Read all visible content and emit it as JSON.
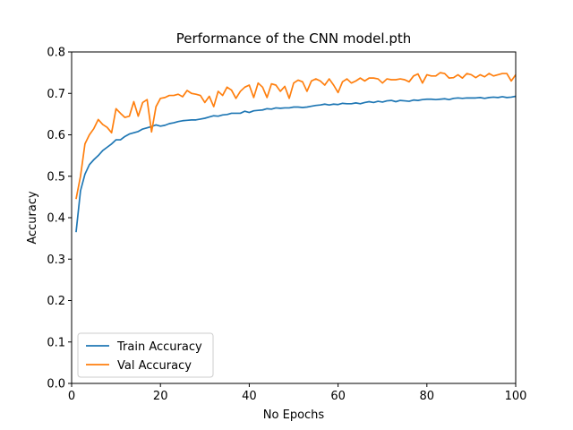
{
  "chart_data": {
    "type": "line",
    "title": "Performance of the CNN model.pth",
    "xlabel": "No Epochs",
    "ylabel": "Accuracy",
    "xlim": [
      0,
      100
    ],
    "ylim": [
      0.0,
      0.8
    ],
    "xticks": [
      "0",
      "20",
      "40",
      "60",
      "80",
      "100"
    ],
    "yticks": [
      "0.0",
      "0.1",
      "0.2",
      "0.3",
      "0.4",
      "0.5",
      "0.6",
      "0.7",
      "0.8"
    ],
    "grid": false,
    "legend": "lower-left",
    "series": [
      {
        "name": "Train Accuracy",
        "color": "#1f77b4",
        "values": [
          0.365,
          0.465,
          0.505,
          0.528,
          0.54,
          0.55,
          0.562,
          0.57,
          0.578,
          0.588,
          0.588,
          0.596,
          0.602,
          0.605,
          0.608,
          0.614,
          0.617,
          0.62,
          0.624,
          0.621,
          0.623,
          0.627,
          0.629,
          0.632,
          0.634,
          0.635,
          0.636,
          0.636,
          0.638,
          0.64,
          0.643,
          0.646,
          0.645,
          0.648,
          0.649,
          0.652,
          0.652,
          0.652,
          0.657,
          0.654,
          0.658,
          0.659,
          0.66,
          0.663,
          0.662,
          0.665,
          0.664,
          0.665,
          0.665,
          0.667,
          0.667,
          0.666,
          0.667,
          0.669,
          0.671,
          0.672,
          0.674,
          0.672,
          0.674,
          0.673,
          0.676,
          0.675,
          0.675,
          0.677,
          0.675,
          0.678,
          0.68,
          0.678,
          0.681,
          0.679,
          0.682,
          0.683,
          0.68,
          0.683,
          0.682,
          0.681,
          0.684,
          0.683,
          0.685,
          0.686,
          0.686,
          0.685,
          0.686,
          0.687,
          0.685,
          0.688,
          0.689,
          0.688,
          0.689,
          0.689,
          0.689,
          0.69,
          0.688,
          0.69,
          0.691,
          0.69,
          0.692,
          0.69,
          0.691,
          0.693
        ]
      },
      {
        "name": "Val Accuracy",
        "color": "#ff7f0e",
        "values": [
          0.445,
          0.5,
          0.578,
          0.6,
          0.615,
          0.637,
          0.625,
          0.618,
          0.605,
          0.663,
          0.652,
          0.642,
          0.645,
          0.68,
          0.645,
          0.678,
          0.685,
          0.607,
          0.668,
          0.688,
          0.69,
          0.695,
          0.695,
          0.698,
          0.692,
          0.707,
          0.7,
          0.698,
          0.695,
          0.678,
          0.693,
          0.668,
          0.705,
          0.695,
          0.715,
          0.708,
          0.688,
          0.705,
          0.715,
          0.72,
          0.69,
          0.725,
          0.715,
          0.69,
          0.723,
          0.72,
          0.705,
          0.717,
          0.688,
          0.725,
          0.732,
          0.728,
          0.705,
          0.73,
          0.735,
          0.73,
          0.72,
          0.735,
          0.72,
          0.702,
          0.728,
          0.735,
          0.725,
          0.73,
          0.737,
          0.73,
          0.737,
          0.737,
          0.735,
          0.725,
          0.735,
          0.733,
          0.733,
          0.735,
          0.733,
          0.728,
          0.742,
          0.747,
          0.725,
          0.745,
          0.742,
          0.742,
          0.75,
          0.748,
          0.737,
          0.738,
          0.745,
          0.737,
          0.748,
          0.745,
          0.738,
          0.745,
          0.74,
          0.748,
          0.742,
          0.745,
          0.748,
          0.748,
          0.73,
          0.745
        ]
      }
    ]
  }
}
